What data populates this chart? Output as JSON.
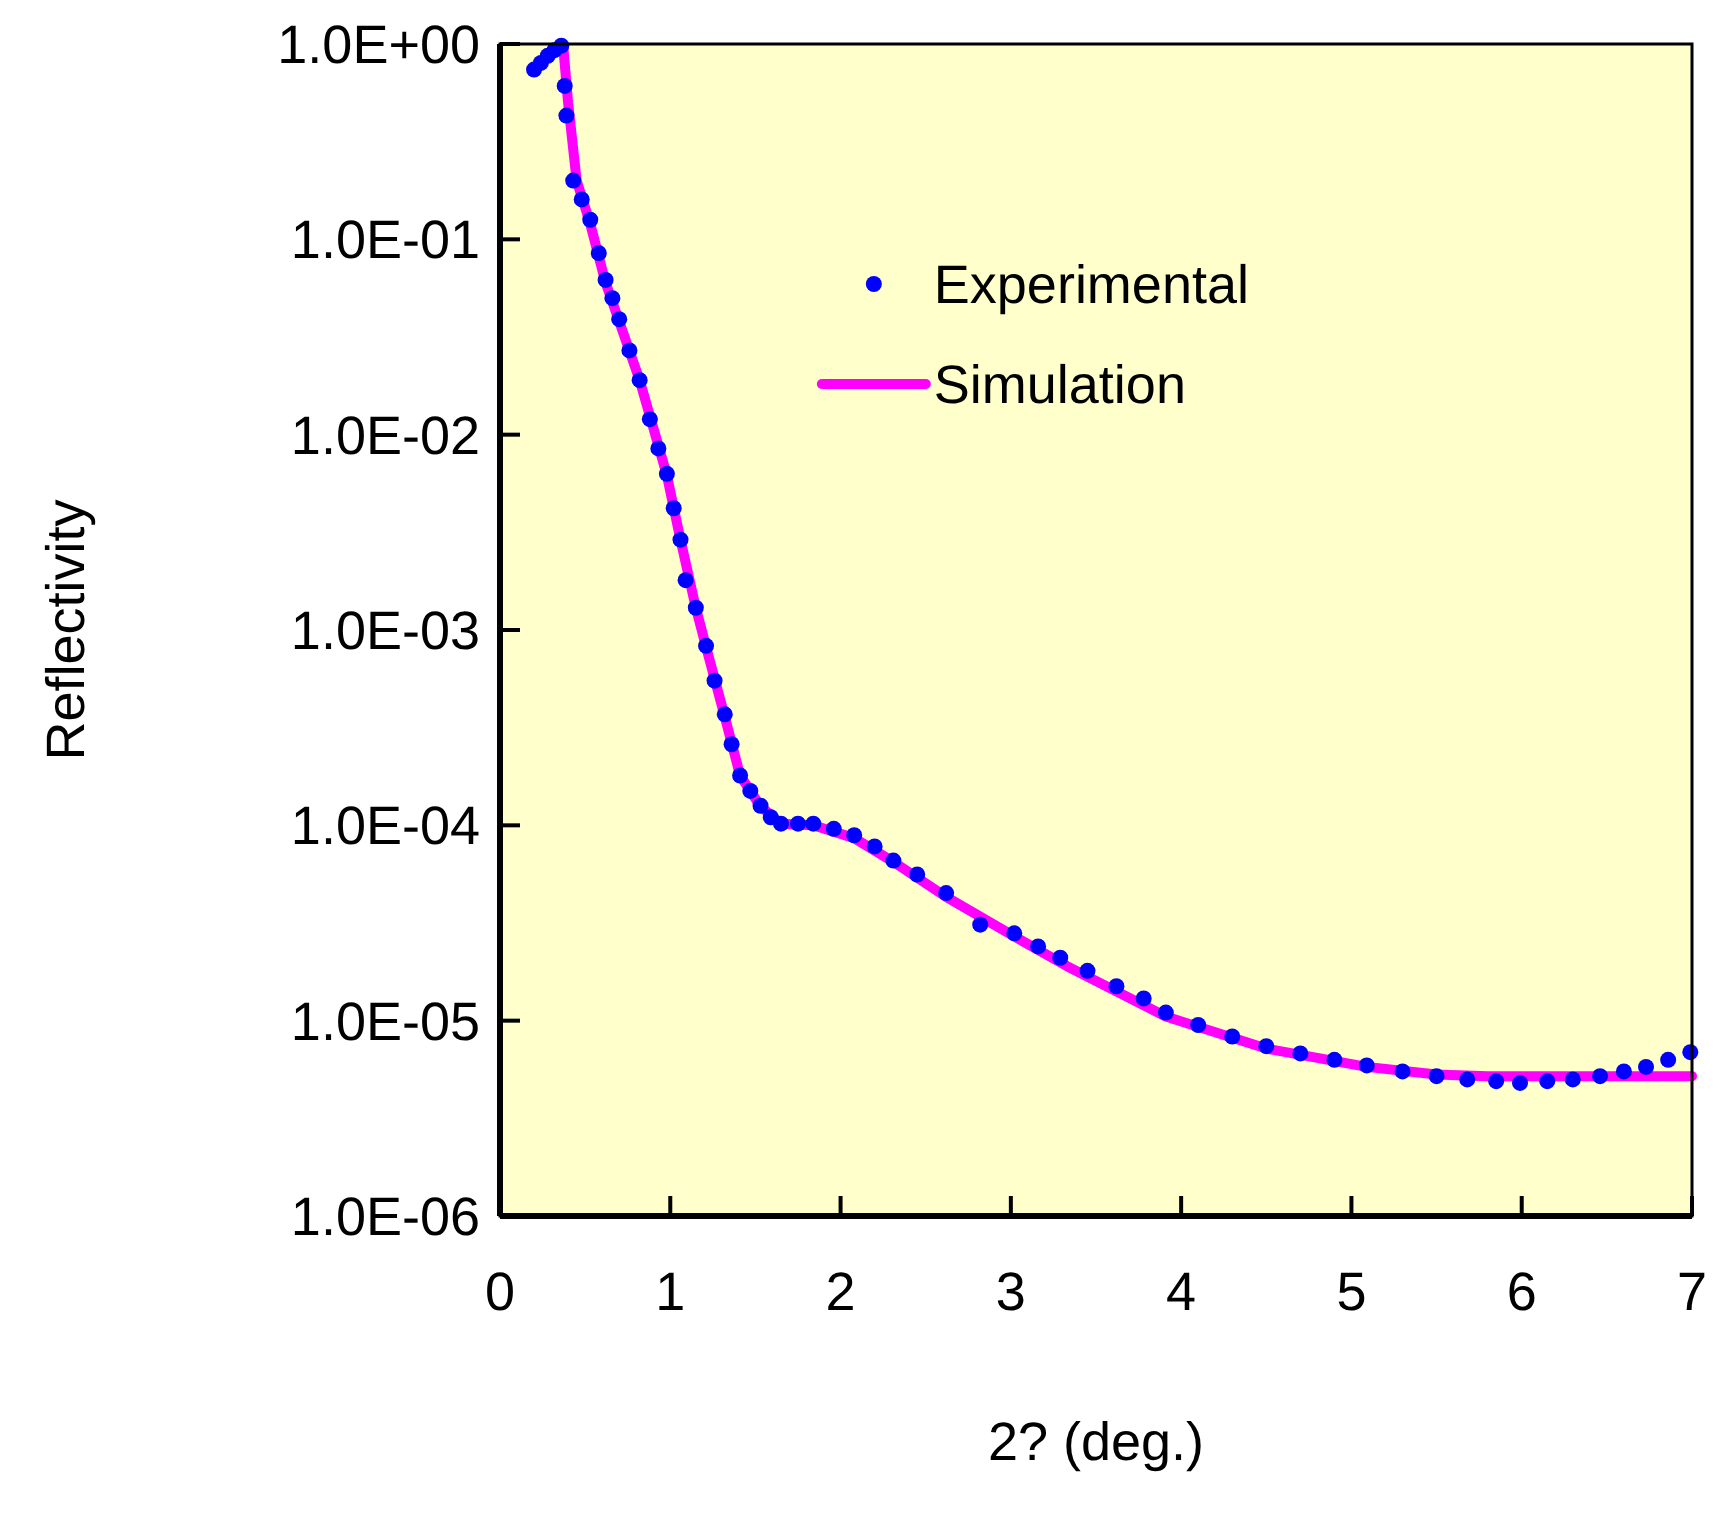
{
  "chart_data": {
    "type": "scatter",
    "xlabel": "2? (deg.)",
    "ylabel": "Reflectivity",
    "log": "y",
    "grid": false,
    "legend": "top",
    "xlim": [
      0,
      7
    ],
    "xticks": [
      0,
      1,
      2,
      3,
      4,
      5,
      6,
      7
    ],
    "ylim": [
      1e-06,
      1
    ],
    "yticks": [
      {
        "value": 1,
        "label": "1.0E+00"
      },
      {
        "value": 0.1,
        "label": "1.0E-01"
      },
      {
        "value": 0.01,
        "label": "1.0E-02"
      },
      {
        "value": 0.001,
        "label": "1.0E-03"
      },
      {
        "value": 0.0001,
        "label": "1.0E-04"
      },
      {
        "value": 1e-05,
        "label": "1.0E-05"
      },
      {
        "value": 1e-06,
        "label": "1.0E-06"
      }
    ],
    "series": [
      {
        "name": "Experimental",
        "marker": "circle",
        "color": "#0000ff",
        "x": [
          0.2,
          0.24,
          0.28,
          0.32,
          0.36,
          0.38,
          0.39,
          0.43,
          0.48,
          0.53,
          0.58,
          0.62,
          0.66,
          0.7,
          0.76,
          0.82,
          0.88,
          0.93,
          0.98,
          1.02,
          1.06,
          1.09,
          1.15,
          1.21,
          1.26,
          1.32,
          1.36,
          1.41,
          1.47,
          1.53,
          1.59,
          1.65,
          1.75,
          1.84,
          1.96,
          2.08,
          2.2,
          2.31,
          2.45,
          2.62,
          2.82,
          3.02,
          3.16,
          3.29,
          3.45,
          3.62,
          3.78,
          3.91,
          4.1,
          4.3,
          4.5,
          4.7,
          4.9,
          5.09,
          5.3,
          5.5,
          5.68,
          5.85,
          5.99,
          6.15,
          6.3,
          6.46,
          6.6,
          6.73,
          6.86,
          6.99
        ],
        "values": [
          0.74,
          0.8,
          0.87,
          0.93,
          0.98,
          0.61,
          0.43,
          0.2,
          0.16,
          0.126,
          0.085,
          0.062,
          0.05,
          0.039,
          0.027,
          0.019,
          0.012,
          0.0085,
          0.0063,
          0.0042,
          0.0029,
          0.0018,
          0.0013,
          0.00083,
          0.00055,
          0.00037,
          0.00026,
          0.00018,
          0.00015,
          0.000126,
          0.00011,
          0.000102,
          0.000102,
          0.000102,
          9.6e-05,
          8.9e-05,
          7.8e-05,
          6.6e-05,
          5.6e-05,
          4.5e-05,
          3.1e-05,
          2.8e-05,
          2.4e-05,
          2.1e-05,
          1.8e-05,
          1.5e-05,
          1.3e-05,
          1.1e-05,
          9.5e-06,
          8.3e-06,
          7.4e-06,
          6.8e-06,
          6.3e-06,
          5.9e-06,
          5.5e-06,
          5.2e-06,
          5e-06,
          4.9e-06,
          4.8e-06,
          4.9e-06,
          5e-06,
          5.2e-06,
          5.5e-06,
          5.8e-06,
          6.3e-06,
          6.9e-06
        ]
      },
      {
        "name": "Simulation",
        "type": "line",
        "color": "#ff00ff",
        "x": [
          0.34,
          0.37,
          0.4,
          0.45,
          0.53,
          0.62,
          0.7,
          0.82,
          0.98,
          1.06,
          1.15,
          1.21,
          1.32,
          1.41,
          1.53,
          1.65,
          1.84,
          2.08,
          2.31,
          2.62,
          3.02,
          3.33,
          3.91,
          4.5,
          5.09,
          5.5,
          5.8,
          6.2,
          6.6,
          7
        ],
        "values": [
          0.98,
          1.0,
          0.5,
          0.2,
          0.12,
          0.06,
          0.038,
          0.019,
          0.0062,
          0.0029,
          0.0013,
          0.00082,
          0.00036,
          0.00018,
          0.000125,
          0.000102,
          0.0001,
          8.6e-05,
          6.5e-05,
          4.3e-05,
          2.7e-05,
          1.9e-05,
          1.05e-05,
          7.2e-06,
          5.8e-06,
          5.3e-06,
          5.2e-06,
          5.2e-06,
          5.2e-06,
          5.2e-06
        ]
      }
    ]
  }
}
